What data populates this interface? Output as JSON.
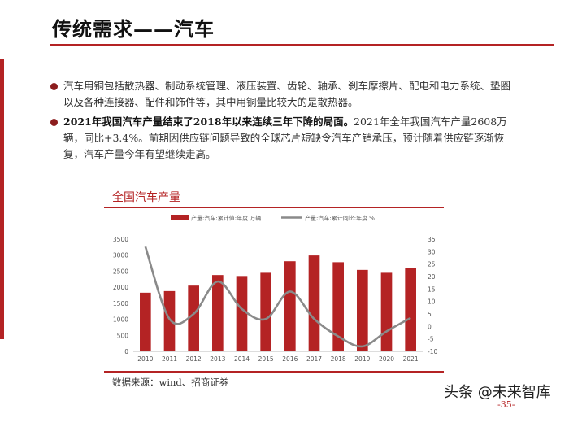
{
  "page": {
    "title": "传统需求——汽车",
    "bullet1": "汽车用铜包括散热器、制动系统管理、液压装置、齿轮、轴承、刹车摩擦片、配电和电力系统、垫圈以及各种连接器、配件和饰件等，其中用铜量比较大的是散热器。",
    "bullet2_bold": "2021年我国汽车产量结束了2018年以来连续三年下降的局面。",
    "bullet2_rest": "2021年全年我国汽车产量2608万辆，同比+3.4%。前期因供应链问题导致的全球芯片短缺令汽车产销承压，预计随着供应链逐渐恢复，汽车产量今年有望继续走高。",
    "chart_heading": "全国汽车产量",
    "source": "数据来源：wind、招商证券",
    "watermark": "头条 @未来智库",
    "page_number": "-35-"
  },
  "colors": {
    "accent": "#b42324",
    "bar": "#b42324",
    "line": "#8a8a8a"
  },
  "chart_data": {
    "type": "bar",
    "categories": [
      "2010",
      "2011",
      "2012",
      "2013",
      "2014",
      "2015",
      "2016",
      "2017",
      "2018",
      "2019",
      "2020",
      "2021"
    ],
    "series": [
      {
        "name": "产量:汽车:累计值:年度  万辆",
        "type": "bar",
        "axis": "left",
        "values": [
          1830,
          1880,
          2050,
          2380,
          2350,
          2450,
          2810,
          2990,
          2780,
          2540,
          2450,
          2608
        ]
      },
      {
        "name": "产量:汽车:累计同比:年度  %",
        "type": "line",
        "axis": "right",
        "values": [
          32,
          3,
          5,
          18,
          7,
          3,
          14,
          3,
          -4,
          -8,
          -2,
          3.4
        ]
      }
    ],
    "ylim_left": [
      0,
      3500
    ],
    "yticks_left": [
      0,
      500,
      1000,
      1500,
      2000,
      2500,
      3000,
      3500
    ],
    "ylim_right": [
      -10,
      35
    ],
    "yticks_right": [
      -10,
      -5,
      0,
      5,
      10,
      15,
      20,
      25,
      30,
      35
    ],
    "legend": "top"
  }
}
